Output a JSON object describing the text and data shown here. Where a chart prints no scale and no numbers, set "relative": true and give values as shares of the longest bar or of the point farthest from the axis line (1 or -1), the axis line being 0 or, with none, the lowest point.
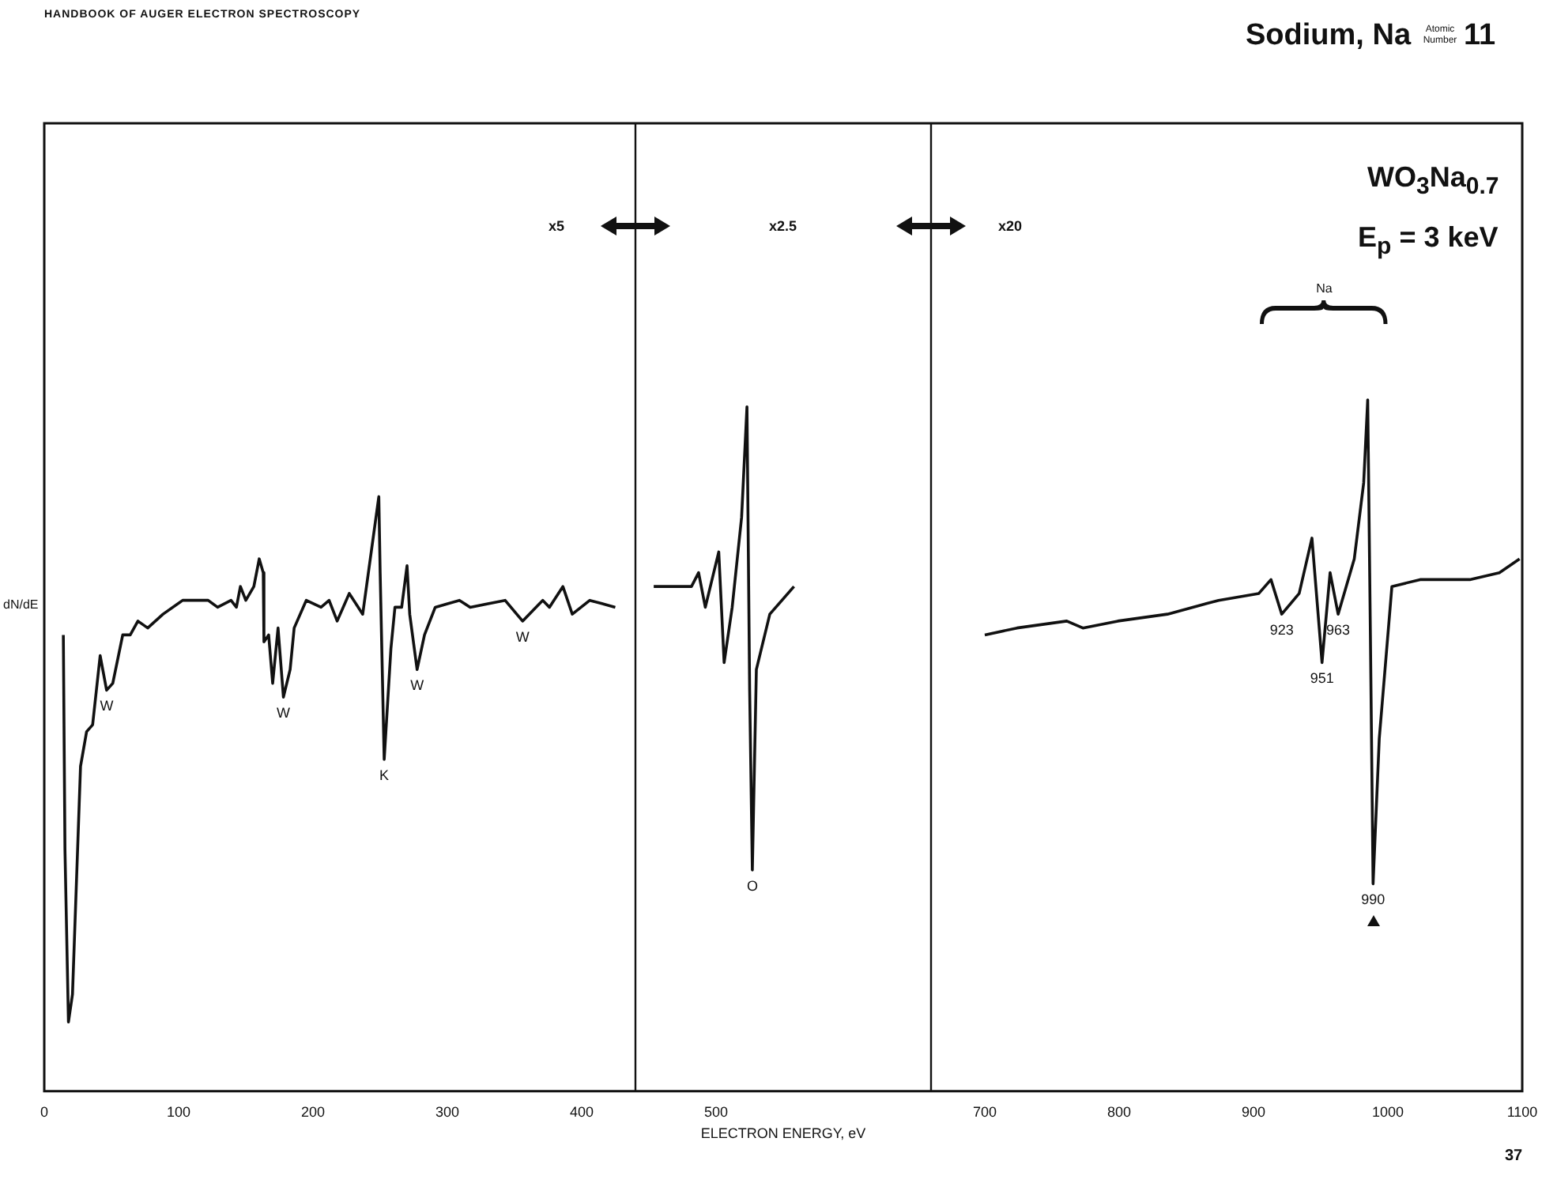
{
  "chart_data": {
    "type": "line",
    "title": "Sodium, Na",
    "xlabel": "ELECTRON ENERGY, eV",
    "ylabel": "dN/dE",
    "x": [
      14.2,
      15.4,
      18,
      21,
      27,
      31.5,
      36,
      41.6,
      46.4,
      51,
      58.4,
      64,
      69.7,
      77,
      88.4,
      103,
      122,
      129,
      139,
      143,
      146,
      150,
      156,
      160,
      163,
      163.5,
      167,
      170,
      174,
      178,
      183,
      186,
      195,
      206,
      212,
      218,
      227,
      237,
      249,
      250,
      253,
      258,
      261,
      266,
      270,
      272,
      277.5,
      283,
      291,
      309,
      317,
      343,
      356,
      371,
      376,
      386,
      393,
      406,
      425,
      440,
      453.6,
      481.7,
      487,
      492,
      502,
      506,
      512,
      519,
      523,
      525,
      527,
      530,
      540,
      558,
      630,
      700,
      724,
      761,
      773,
      799,
      836,
      874,
      904,
      913,
      921,
      934,
      943.5,
      951,
      957,
      963,
      975,
      982,
      985,
      987,
      989,
      993.6,
      1003,
      1024,
      1061,
      1083,
      1098
    ],
    "values": [
      0.66,
      0.35,
      0.1,
      0.14,
      0.47,
      0.52,
      0.53,
      0.63,
      0.58,
      0.59,
      0.66,
      0.66,
      0.68,
      0.67,
      0.69,
      0.71,
      0.71,
      0.7,
      0.71,
      0.7,
      0.73,
      0.71,
      0.73,
      0.77,
      0.75,
      0.65,
      0.66,
      0.59,
      0.67,
      0.57,
      0.61,
      0.67,
      0.71,
      0.7,
      0.71,
      0.68,
      0.72,
      0.69,
      0.86,
      0.75,
      0.48,
      0.64,
      0.7,
      0.7,
      0.76,
      0.69,
      0.61,
      0.66,
      0.7,
      0.71,
      0.7,
      0.71,
      0.68,
      0.71,
      0.7,
      0.73,
      0.69,
      0.71,
      0.7,
      null,
      0.73,
      0.73,
      0.75,
      0.7,
      0.78,
      0.62,
      0.7,
      0.83,
      0.99,
      0.58,
      0.32,
      0.61,
      0.69,
      0.73,
      null,
      0.66,
      0.67,
      0.68,
      0.67,
      0.68,
      0.69,
      0.71,
      0.72,
      0.74,
      0.69,
      0.72,
      0.8,
      0.62,
      0.75,
      0.69,
      0.77,
      0.88,
      1,
      0.66,
      0.3,
      0.51,
      0.73,
      0.74,
      0.74,
      0.75,
      0.77
    ],
    "color": "#111111",
    "relative": true,
    "marker": "none",
    "line_style": "solid",
    "xlim": [
      0,
      1100
    ],
    "xticks": [
      0,
      100,
      200,
      300,
      400,
      500,
      700,
      800,
      900,
      1000,
      1100
    ],
    "ref_lines": [
      {
        "axis": "x",
        "value": 440
      },
      {
        "axis": "x",
        "value": 660
      }
    ],
    "annotations": [
      "HANDBOOK OF AUGER ELECTRON SPECTROSCOPY",
      "Atomic Number",
      "11",
      "WO$_{3}$Na$_{0.7}$",
      "E$_{p}$ = 3 keV",
      "x5",
      "x2.5",
      "x20",
      "Na",
      "37",
      {
        "text": "W",
        "x": 46.4,
        "y": 0.58
      },
      {
        "text": "W",
        "x": 178,
        "y": 0.57
      },
      {
        "text": "K",
        "x": 253,
        "y": 0.48
      },
      {
        "text": "W",
        "x": 277.5,
        "y": 0.61
      },
      {
        "text": "W",
        "x": 356,
        "y": 0.68
      },
      {
        "text": "O",
        "x": 527,
        "y": 0.32
      },
      {
        "text": "923",
        "x": 921,
        "y": 0.69
      },
      {
        "text": "951",
        "x": 951,
        "y": 0.62
      },
      {
        "text": "963",
        "x": 963,
        "y": 0.69
      },
      {
        "text": "990",
        "x": 989,
        "y": 0.3
      }
    ]
  }
}
